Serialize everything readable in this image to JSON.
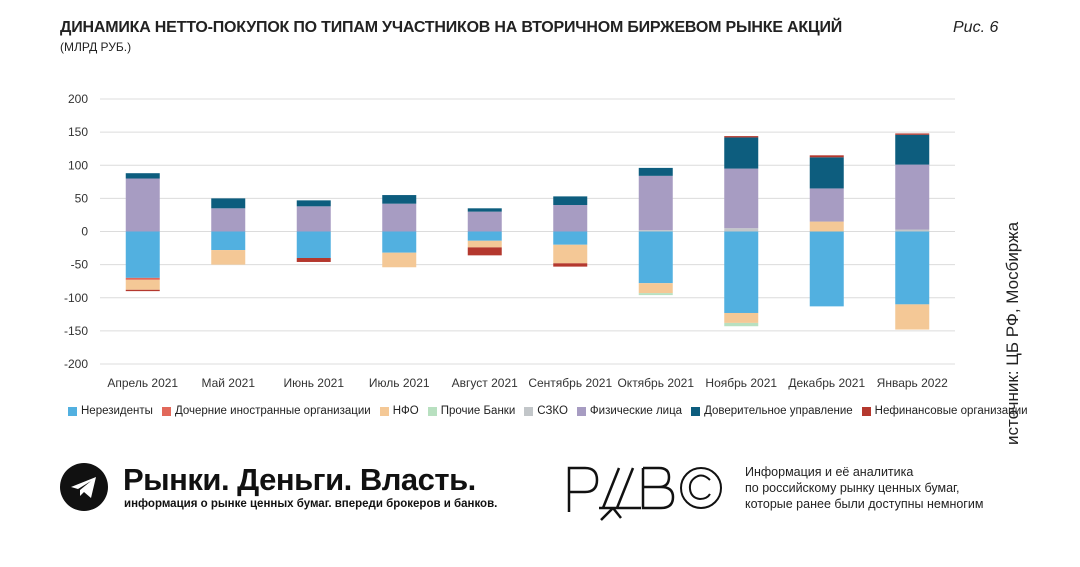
{
  "header": {
    "title": "ДИНАМИКА НЕТТО-ПОКУПОК ПО ТИПАМ УЧАСТНИКОВ НА ВТОРИЧНОМ БИРЖЕВОМ РЫНКЕ АКЦИЙ",
    "subtitle": "(МЛРД РУБ.)",
    "figure_label": "Рис. 6"
  },
  "source": "источник: ЦБ РФ, Мосбиржа",
  "footer": {
    "brand": "Рынки. Деньги. Власть.",
    "tagline": "информация о рынке ценных бумаг. впереди брокеров и банков.",
    "mark": "РДВ",
    "description": [
      "Информация и её аналитика",
      "по российскому рынку ценных бумаг,",
      "которые ранее были доступны немногим"
    ]
  },
  "chart_data": {
    "type": "bar",
    "stacked": true,
    "title": "ДИНАМИКА НЕТТО-ПОКУПОК ПО ТИПАМ УЧАСТНИКОВ НА ВТОРИЧНОМ БИРЖЕВОМ РЫНКЕ АКЦИЙ",
    "ylabel": "",
    "xlabel": "",
    "ylim": [
      -200,
      200
    ],
    "yticks": [
      200,
      150,
      100,
      50,
      0,
      -50,
      -100,
      -150,
      -200
    ],
    "grid": true,
    "legend_position": "bottom",
    "categories": [
      "Апрель 2021",
      "Май 2021",
      "Июнь 2021",
      "Июль 2021",
      "Август 2021",
      "Сентябрь 2021",
      "Октябрь 2021",
      "Ноябрь 2021",
      "Декабрь 2021",
      "Январь 2022"
    ],
    "series": [
      {
        "name": "Нерезиденты",
        "color": "#52b0e0",
        "values": [
          -70,
          -28,
          -40,
          -32,
          -14,
          -20,
          -78,
          -123,
          -113,
          -110
        ]
      },
      {
        "name": "Дочерние иностранные организации",
        "color": "#e2685a",
        "values": [
          -3,
          0,
          0,
          0,
          0,
          0,
          0,
          0,
          0,
          0
        ]
      },
      {
        "name": "НФО",
        "color": "#f4c896",
        "values": [
          -15,
          -22,
          0,
          -22,
          -10,
          -28,
          -15,
          -15,
          15,
          -38
        ]
      },
      {
        "name": "Прочие Банки",
        "color": "#b8e0c0",
        "values": [
          0,
          0,
          0,
          0,
          0,
          0,
          -3,
          -5,
          0,
          0
        ]
      },
      {
        "name": "СЗКО",
        "color": "#c2c6c9",
        "values": [
          0,
          0,
          0,
          0,
          0,
          0,
          2,
          5,
          0,
          3
        ]
      },
      {
        "name": "Физические лица",
        "color": "#a79cc2",
        "values": [
          80,
          35,
          38,
          42,
          30,
          40,
          82,
          90,
          50,
          98
        ]
      },
      {
        "name": "Доверительное управление",
        "color": "#0d5d7e",
        "values": [
          8,
          15,
          9,
          13,
          5,
          13,
          12,
          47,
          47,
          45
        ]
      },
      {
        "name": "Нефинансовые организации",
        "color": "#b4382e",
        "values": [
          -2,
          0,
          -6,
          0,
          -12,
          -5,
          0,
          2,
          3,
          2
        ]
      }
    ]
  }
}
